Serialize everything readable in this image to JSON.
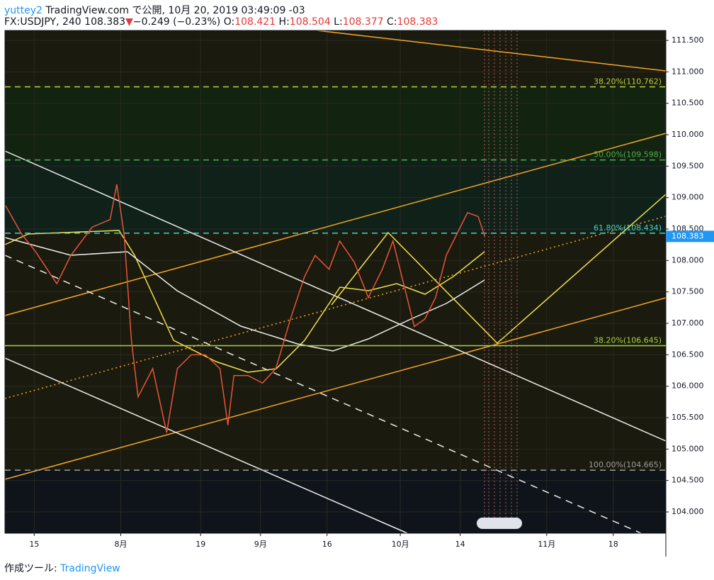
{
  "header": {
    "user": "yuttey2",
    "published": "TradingView.com で公開, 10月 20, 2019 03:49:09 -03",
    "symbol": "FX:USDJPY, 240 108.383",
    "arrow": "▼",
    "change": "−0.249 (−0.23%)",
    "open_label": "O:",
    "open": "108.421",
    "high_label": "H:",
    "high": "108.504",
    "low_label": "L:",
    "low": "108.377",
    "close_label": "C:",
    "close": "108.383"
  },
  "footer": {
    "made_with": "作成ツール:",
    "brand": "TradingView"
  },
  "chart_data": {
    "type": "line",
    "color": "#e8553a",
    "x": [
      -4.3,
      -1.9,
      0.2,
      3.4,
      5.5,
      8.7,
      11.4,
      12.4,
      13.5,
      14.6,
      15.6,
      17.8,
      19.9,
      21.5,
      23.6,
      25.7,
      27.9,
      29.1,
      30.0,
      32.1,
      34.3,
      36.3,
      38.5,
      40.6,
      42.2,
      44.3,
      45.9,
      48.1,
      50.2,
      52.3,
      53.9,
      55.5,
      57.1,
      58.7,
      60.3,
      61.9,
      63.5,
      65.1,
      66.7,
      67.7
    ],
    "values": [
      108.87,
      108.42,
      108.14,
      107.63,
      108.08,
      108.53,
      108.65,
      109.21,
      108.42,
      106.73,
      105.83,
      106.28,
      105.26,
      106.28,
      106.5,
      106.5,
      106.28,
      105.38,
      106.17,
      106.17,
      106.05,
      106.28,
      107.07,
      107.74,
      108.08,
      107.86,
      108.31,
      107.97,
      107.41,
      107.86,
      108.31,
      107.63,
      106.95,
      107.07,
      107.41,
      108.08,
      108.42,
      108.76,
      108.7,
      108.383
    ],
    "xlim": [
      -4.4,
      94.9
    ],
    "xticks": [
      {
        "value": 0,
        "label": "15"
      },
      {
        "value": 13,
        "label": "8月"
      },
      {
        "value": 25,
        "label": "19"
      },
      {
        "value": 34,
        "label": "9月"
      },
      {
        "value": 44,
        "label": "16"
      },
      {
        "value": 55,
        "label": "10月"
      },
      {
        "value": 64,
        "label": "14"
      },
      {
        "value": 77,
        "label": "11月"
      },
      {
        "value": 87,
        "label": "18"
      }
    ],
    "ylim": [
      103.662,
      111.658
    ],
    "yticks": [
      {
        "value": 104,
        "label": "104.000"
      },
      {
        "value": 104.5,
        "label": "104.500"
      },
      {
        "value": 105,
        "label": "105.000"
      },
      {
        "value": 105.5,
        "label": "105.500"
      },
      {
        "value": 106,
        "label": "106.000"
      },
      {
        "value": 106.5,
        "label": "106.500"
      },
      {
        "value": 107,
        "label": "107.000"
      },
      {
        "value": 107.5,
        "label": "107.500"
      },
      {
        "value": 108,
        "label": "108.000"
      },
      {
        "value": 108.5,
        "label": "108.500"
      },
      {
        "value": 109,
        "label": "109.000"
      },
      {
        "value": 109.5,
        "label": "109.500"
      },
      {
        "value": 110,
        "label": "110.000"
      },
      {
        "value": 110.5,
        "label": "110.500"
      },
      {
        "value": 111,
        "label": "111.000"
      },
      {
        "value": 111.5,
        "label": "111.500"
      }
    ],
    "fib_levels": [
      {
        "value": 110.762,
        "label": "38.20%(110.762)",
        "color": "#b5d43a",
        "dash": "8,6"
      },
      {
        "value": 109.598,
        "label": "50.00%(109.598)",
        "color": "#4caf50",
        "dash": "8,6"
      },
      {
        "value": 108.434,
        "label": "61.80%(108.434)",
        "color": "#4dd0c8",
        "dash": "8,6"
      },
      {
        "value": 106.645,
        "label": "38.20%(106.645)",
        "color": "#a5d63a",
        "dash": "none"
      },
      {
        "value": 104.665,
        "label": "100.00%(104.665)",
        "color": "#9e9e9e",
        "dash": "8,6"
      }
    ],
    "last_price": {
      "value": 108.383,
      "label": "108.383"
    },
    "last_price_color": "#2196f3"
  }
}
